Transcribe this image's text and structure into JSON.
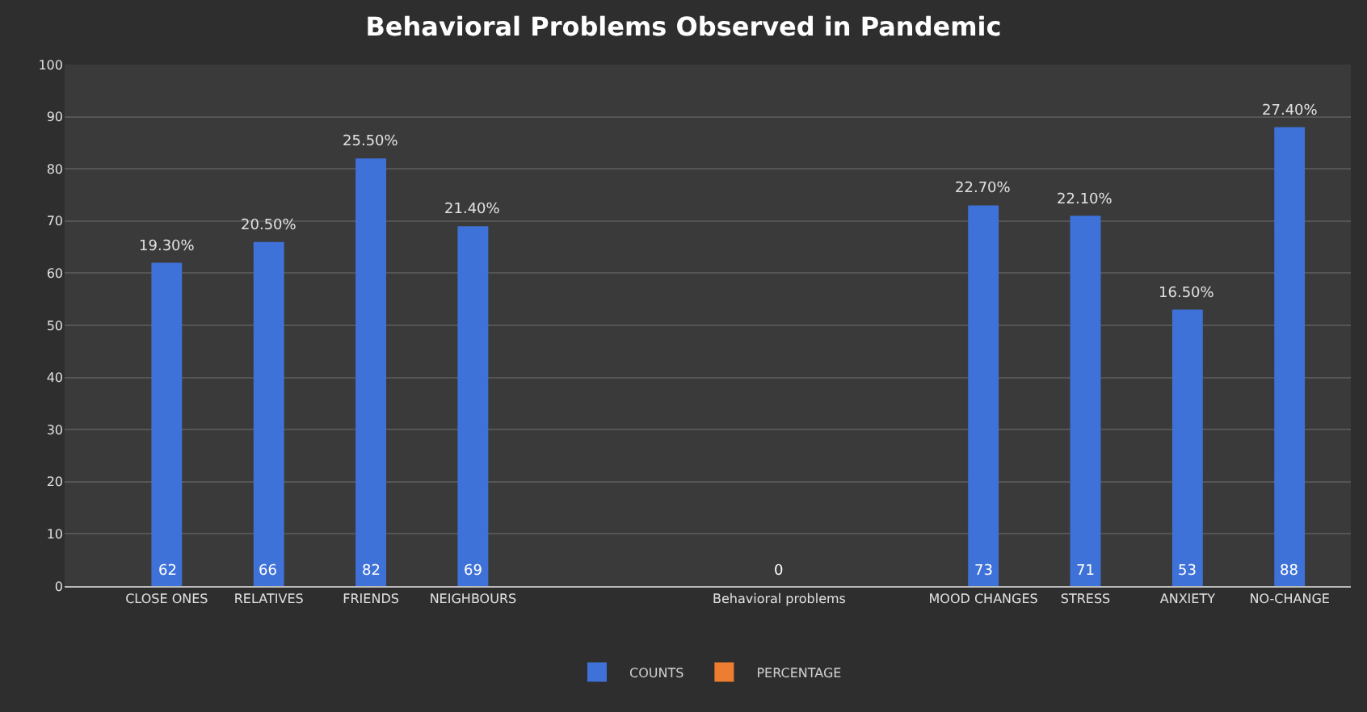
{
  "chart_data": {
    "type": "bar",
    "title": "Behavioral Problems Observed in Pandemic",
    "categories": [
      "CLOSE ONES",
      "RELATIVES",
      "FRIENDS",
      "NEIGHBOURS",
      null,
      null,
      "Behavioral problems",
      null,
      "MOOD CHANGES",
      "STRESS",
      "ANXIETY",
      "NO-CHANGE"
    ],
    "series": [
      {
        "name": "COUNTS",
        "color": "#3f72d8",
        "values": [
          62,
          66,
          82,
          69,
          null,
          null,
          0,
          null,
          73,
          71,
          53,
          88
        ]
      },
      {
        "name": "PERCENTAGE",
        "color": "#ed7d31",
        "values": [
          null,
          null,
          null,
          null,
          null,
          null,
          null,
          null,
          null,
          null,
          null,
          null
        ],
        "value_labels": [
          "19.30%",
          "20.50%",
          "25.50%",
          "21.40%",
          null,
          null,
          null,
          null,
          "22.70%",
          "22.10%",
          "16.50%",
          "27.40%"
        ]
      }
    ],
    "data_labels": true,
    "ylim": [
      0,
      100
    ],
    "yticks": [
      0,
      10,
      20,
      30,
      40,
      50,
      60,
      70,
      80,
      90,
      100
    ],
    "grid": "y",
    "legend": "bottom"
  }
}
